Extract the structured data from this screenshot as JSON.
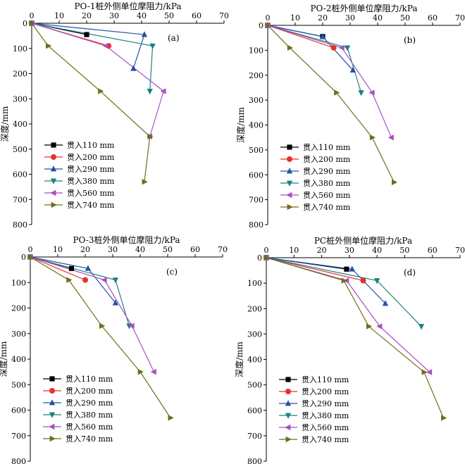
{
  "figure": {
    "chart_data": [
      {
        "type": "line",
        "panel_label": "(a)",
        "title": "PO-1桩外侧单位摩阻力/kPa",
        "xlabel": "",
        "ylabel": "深度/mm",
        "xlim": [
          0,
          70
        ],
        "ylim": [
          0,
          800
        ],
        "x_ticks": [
          0,
          10,
          20,
          30,
          40,
          50,
          60,
          70
        ],
        "y_ticks": [
          0,
          100,
          200,
          300,
          400,
          500,
          600,
          700,
          800
        ],
        "y_inverted": true,
        "legend_position": "bottom-left",
        "grid": false,
        "series": [
          {
            "name": "贯入110 mm",
            "x": [
              0,
              20
            ],
            "y": [
              0,
              45
            ]
          },
          {
            "name": "贯入200 mm",
            "x": [
              0,
              28
            ],
            "y": [
              0,
              90
            ]
          },
          {
            "name": "贯入290 mm",
            "x": [
              0,
              41,
              37
            ],
            "y": [
              0,
              45,
              180
            ]
          },
          {
            "name": "贯入380 mm",
            "x": [
              0,
              44,
              43
            ],
            "y": [
              0,
              90,
              270
            ]
          },
          {
            "name": "贯入560 mm",
            "x": [
              0,
              27,
              48,
              43
            ],
            "y": [
              0,
              90,
              270,
              450
            ]
          },
          {
            "name": "贯入740 mm",
            "x": [
              0,
              6,
              25,
              43,
              41
            ],
            "y": [
              0,
              90,
              270,
              450,
              630
            ]
          }
        ]
      },
      {
        "type": "line",
        "panel_label": "(b)",
        "title": "PO-2桩外侧单位摩阻力/kPa",
        "xlabel": "",
        "ylabel": "深度/mm",
        "xlim": [
          0,
          70
        ],
        "ylim": [
          0,
          800
        ],
        "x_ticks": [
          0,
          10,
          20,
          30,
          40,
          50,
          60,
          70
        ],
        "y_ticks": [
          0,
          100,
          200,
          300,
          400,
          500,
          600,
          700,
          800
        ],
        "y_inverted": true,
        "legend_position": "bottom-left",
        "grid": false,
        "series": [
          {
            "name": "贯入110 mm",
            "x": [
              0,
              20
            ],
            "y": [
              0,
              45
            ]
          },
          {
            "name": "贯入200 mm",
            "x": [
              0,
              24
            ],
            "y": [
              0,
              90
            ]
          },
          {
            "name": "贯入290 mm",
            "x": [
              0,
              20,
              31
            ],
            "y": [
              0,
              45,
              180
            ]
          },
          {
            "name": "贯入380 mm",
            "x": [
              0,
              29,
              34
            ],
            "y": [
              0,
              90,
              270
            ]
          },
          {
            "name": "贯入560 mm",
            "x": [
              0,
              27,
              38,
              45
            ],
            "y": [
              0,
              90,
              270,
              450
            ]
          },
          {
            "name": "贯入740 mm",
            "x": [
              0,
              8,
              25,
              38,
              46
            ],
            "y": [
              0,
              90,
              270,
              450,
              630
            ]
          }
        ]
      },
      {
        "type": "line",
        "panel_label": "(c)",
        "title": "PO-3桩外侧单位摩阻力/kPa",
        "xlabel": "",
        "ylabel": "深度/mm",
        "xlim": [
          0,
          70
        ],
        "ylim": [
          0,
          800
        ],
        "x_ticks": [
          0,
          10,
          20,
          30,
          40,
          50,
          60,
          70
        ],
        "y_ticks": [
          0,
          100,
          200,
          300,
          400,
          500,
          600,
          700,
          800
        ],
        "y_inverted": true,
        "legend_position": "bottom-left",
        "grid": false,
        "series": [
          {
            "name": "贯入110 mm",
            "x": [
              0,
              15
            ],
            "y": [
              0,
              45
            ]
          },
          {
            "name": "贯入200 mm",
            "x": [
              0,
              20
            ],
            "y": [
              0,
              90
            ]
          },
          {
            "name": "贯入290 mm",
            "x": [
              0,
              21,
              31
            ],
            "y": [
              0,
              45,
              180
            ]
          },
          {
            "name": "贯入380 mm",
            "x": [
              0,
              31,
              36
            ],
            "y": [
              0,
              90,
              270
            ]
          },
          {
            "name": "贯入560 mm",
            "x": [
              0,
              27,
              37,
              45
            ],
            "y": [
              0,
              90,
              270,
              450
            ]
          },
          {
            "name": "贯入740 mm",
            "x": [
              0,
              14,
              26,
              40,
              51
            ],
            "y": [
              0,
              90,
              270,
              450,
              630
            ]
          }
        ]
      },
      {
        "type": "line",
        "panel_label": "(d)",
        "title": "PC桩外侧单位摩阻力/kPa",
        "xlabel": "",
        "ylabel": "深度/mm",
        "xlim": [
          0,
          70
        ],
        "ylim": [
          0,
          800
        ],
        "x_ticks": [
          0,
          10,
          20,
          30,
          40,
          50,
          60,
          70
        ],
        "y_ticks": [
          0,
          100,
          200,
          300,
          400,
          500,
          600,
          700,
          800
        ],
        "y_inverted": true,
        "legend_position": "bottom-left",
        "grid": false,
        "series": [
          {
            "name": "贯入110 mm",
            "x": [
              0,
              29
            ],
            "y": [
              0,
              45
            ]
          },
          {
            "name": "贯入200 mm",
            "x": [
              0,
              35
            ],
            "y": [
              0,
              90
            ]
          },
          {
            "name": "贯入290 mm",
            "x": [
              0,
              31,
              43
            ],
            "y": [
              0,
              45,
              180
            ]
          },
          {
            "name": "贯入380 mm",
            "x": [
              0,
              40,
              56
            ],
            "y": [
              0,
              90,
              270
            ]
          },
          {
            "name": "贯入560 mm",
            "x": [
              0,
              29,
              41,
              59
            ],
            "y": [
              0,
              90,
              270,
              450
            ]
          },
          {
            "name": "贯入740 mm",
            "x": [
              0,
              28,
              37,
              57,
              64
            ],
            "y": [
              0,
              90,
              270,
              450,
              630
            ]
          }
        ]
      }
    ],
    "series_styles": [
      {
        "color": "#000000",
        "marker": "square"
      },
      {
        "color": "#e8312b",
        "marker": "circle"
      },
      {
        "color": "#2353a5",
        "marker": "triangle-up"
      },
      {
        "color": "#1f8080",
        "marker": "triangle-down"
      },
      {
        "color": "#a94fc2",
        "marker": "triangle-left"
      },
      {
        "color": "#6e6e1c",
        "marker": "triangle-right"
      }
    ],
    "axis_color": "#000000"
  }
}
